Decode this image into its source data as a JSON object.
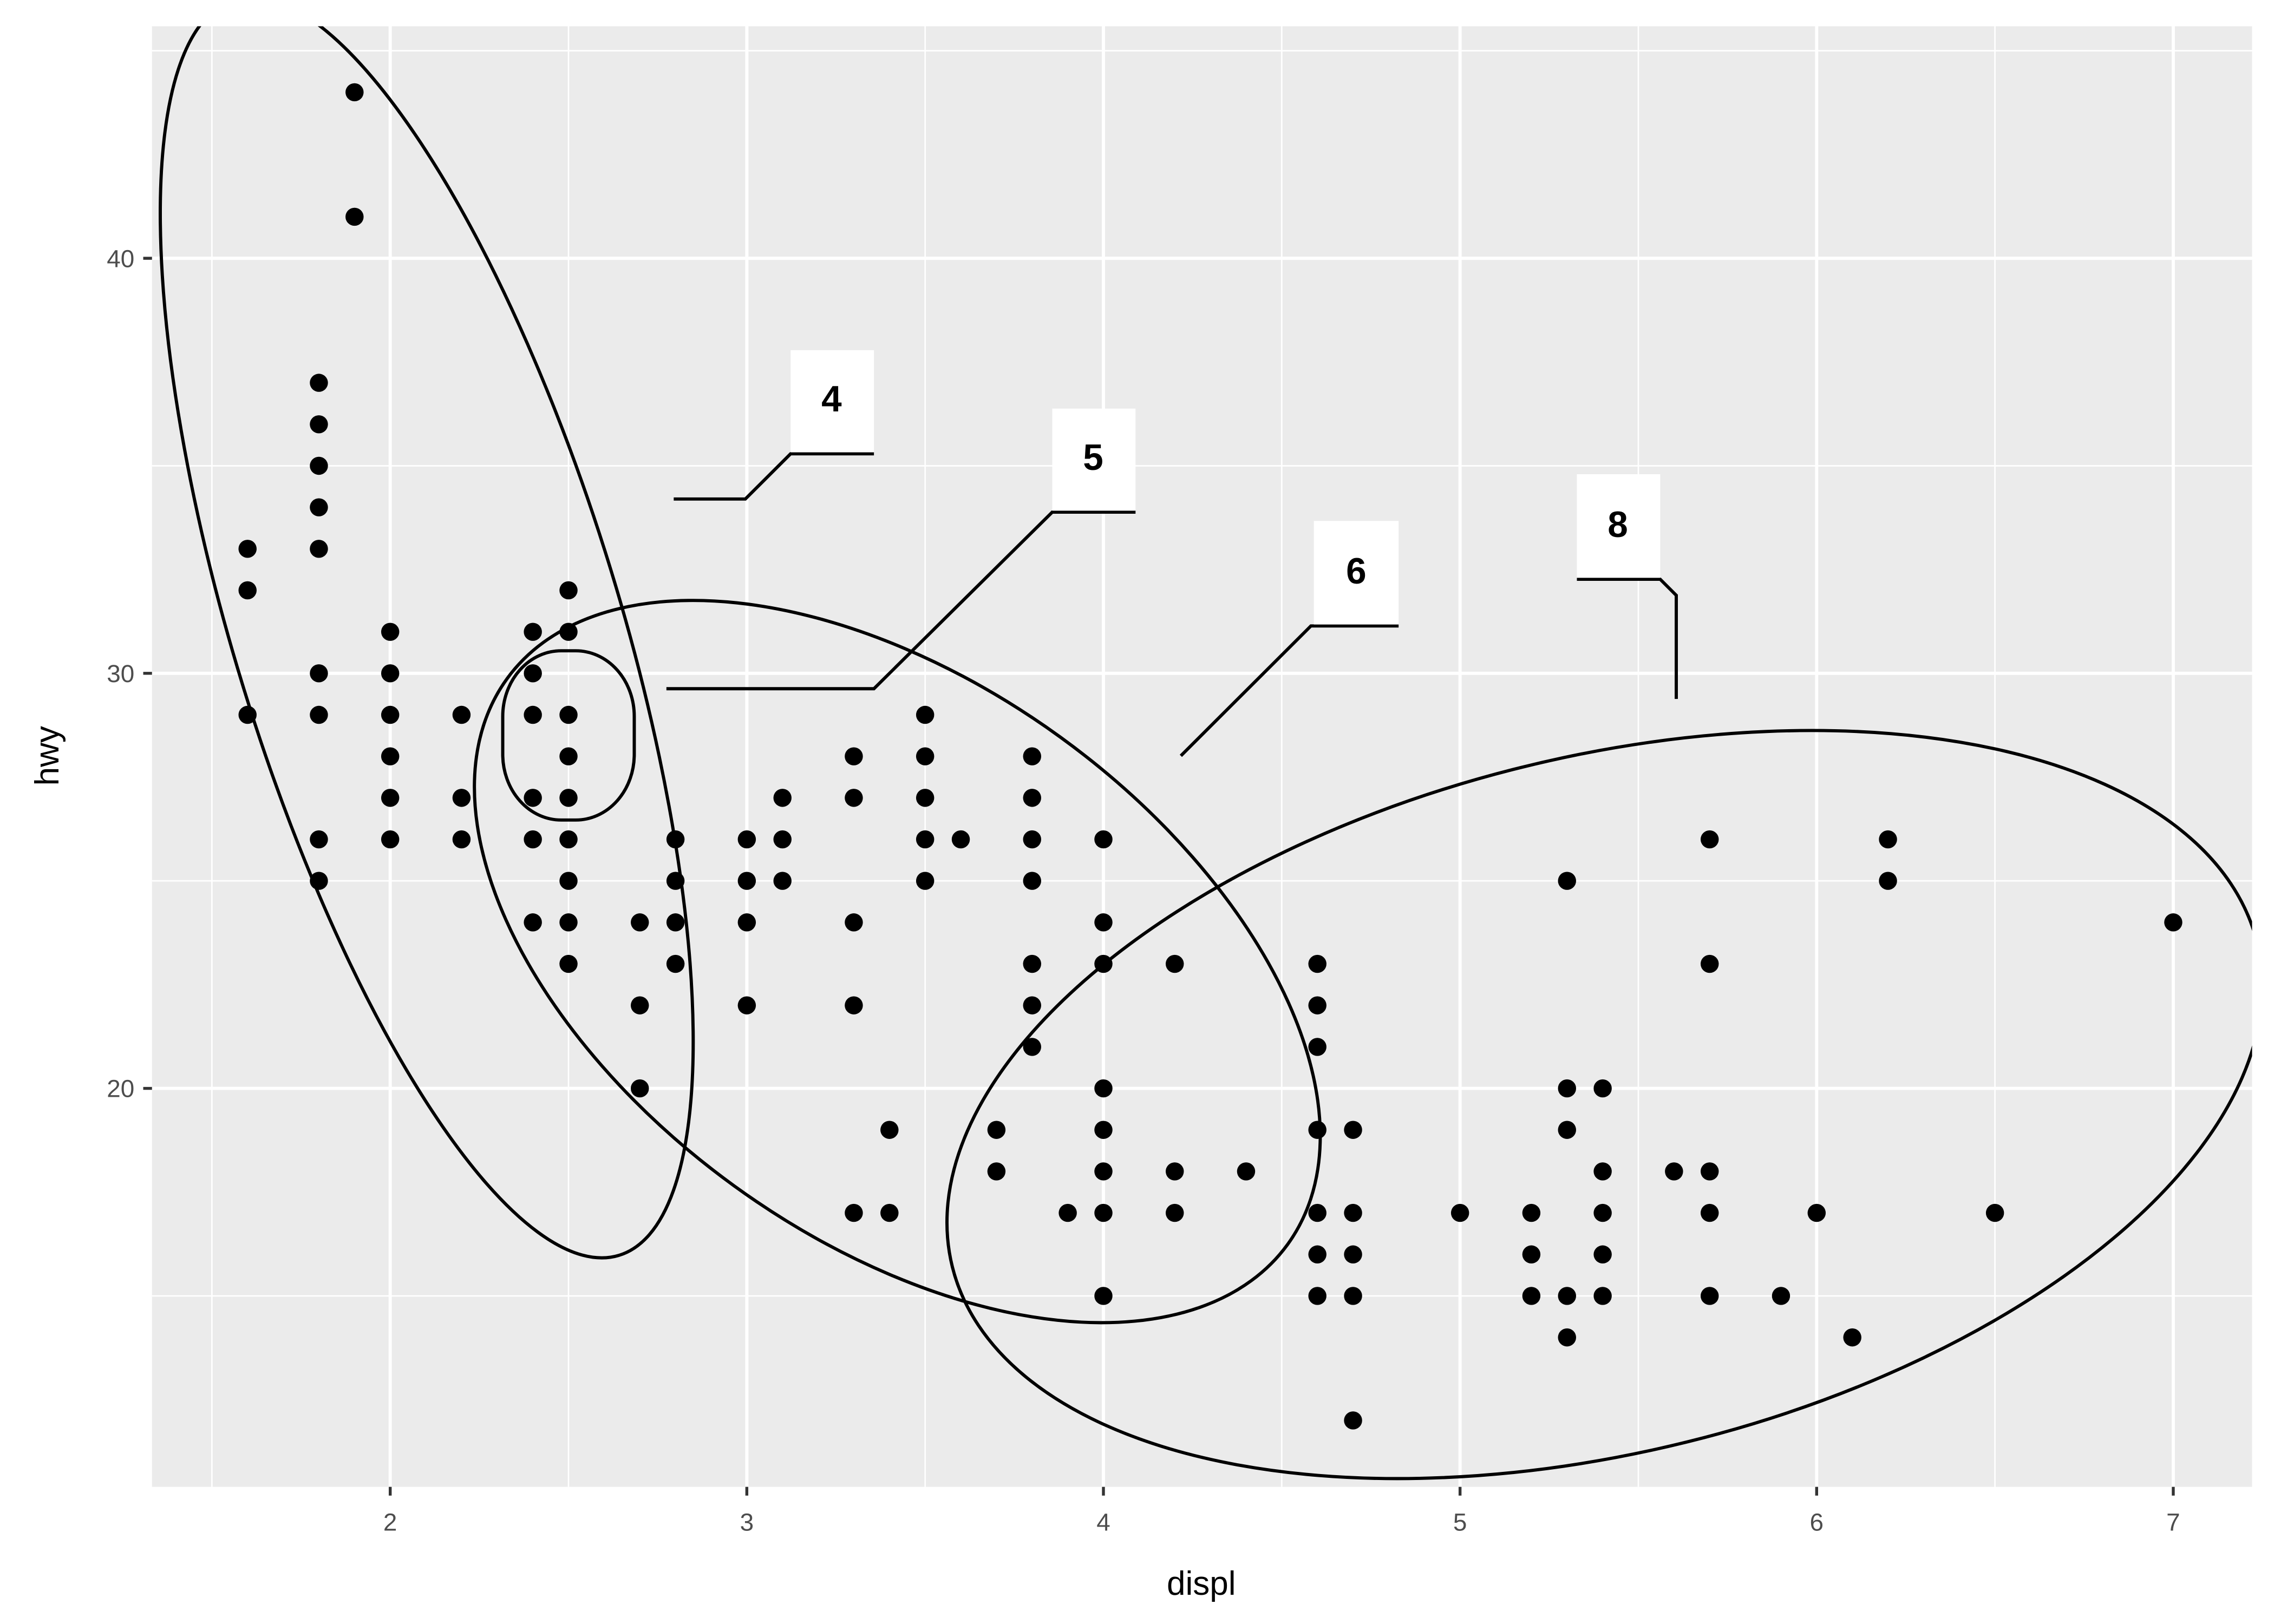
{
  "chart_data": {
    "type": "scatter",
    "x_label": "displ",
    "y_label": "hwy",
    "color": "#000000",
    "grid": true,
    "xlim": [
      1.332,
      7.221
    ],
    "ylim": [
      10.4,
      45.59
    ],
    "xticks": [
      2,
      3,
      4,
      5,
      6,
      7
    ],
    "yticks": [
      20,
      30,
      40
    ],
    "x": [
      1.6,
      1.6,
      1.6,
      1.8,
      1.8,
      1.8,
      1.8,
      1.8,
      1.8,
      1.8,
      1.8,
      1.8,
      1.9,
      1.9,
      2.0,
      2.0,
      2.0,
      2.0,
      2.0,
      2.0,
      2.2,
      2.2,
      2.2,
      2.4,
      2.4,
      2.4,
      2.4,
      2.4,
      2.4,
      2.5,
      2.5,
      2.5,
      2.5,
      2.5,
      2.5,
      2.5,
      2.5,
      2.5,
      2.7,
      2.7,
      2.7,
      2.8,
      2.8,
      2.8,
      2.8,
      3.0,
      3.0,
      3.0,
      3.0,
      3.1,
      3.1,
      3.1,
      3.3,
      3.3,
      3.3,
      3.3,
      3.3,
      3.4,
      3.4,
      3.5,
      3.5,
      3.5,
      3.5,
      3.5,
      3.6,
      3.7,
      3.7,
      3.8,
      3.8,
      3.8,
      3.8,
      3.8,
      3.8,
      3.8,
      3.9,
      4.0,
      4.0,
      4.0,
      4.0,
      4.0,
      4.0,
      4.0,
      4.0,
      4.2,
      4.2,
      4.2,
      4.4,
      4.6,
      4.6,
      4.6,
      4.6,
      4.6,
      4.6,
      4.6,
      4.7,
      4.7,
      4.7,
      4.7,
      4.7,
      5.0,
      5.2,
      5.2,
      5.2,
      5.3,
      5.3,
      5.3,
      5.3,
      5.3,
      5.4,
      5.4,
      5.4,
      5.4,
      5.4,
      5.6,
      5.7,
      5.7,
      5.7,
      5.7,
      5.7,
      5.9,
      6.0,
      6.1,
      6.2,
      6.2,
      6.5,
      7.0
    ],
    "values": [
      33,
      32,
      29,
      37,
      36,
      35,
      34,
      33,
      30,
      29,
      26,
      25,
      44,
      41,
      31,
      30,
      29,
      28,
      27,
      26,
      29,
      27,
      26,
      31,
      30,
      29,
      27,
      26,
      24,
      32,
      31,
      29,
      28,
      27,
      26,
      25,
      24,
      23,
      24,
      22,
      20,
      26,
      25,
      24,
      23,
      26,
      25,
      24,
      22,
      27,
      26,
      25,
      28,
      27,
      24,
      22,
      17,
      19,
      17,
      29,
      28,
      27,
      26,
      25,
      26,
      19,
      18,
      28,
      27,
      26,
      25,
      23,
      22,
      21,
      17,
      26,
      24,
      23,
      20,
      19,
      18,
      17,
      15,
      23,
      18,
      17,
      18,
      23,
      22,
      21,
      19,
      17,
      16,
      15,
      19,
      17,
      16,
      15,
      12,
      17,
      17,
      16,
      15,
      25,
      20,
      19,
      15,
      14,
      20,
      18,
      17,
      16,
      15,
      18,
      26,
      23,
      18,
      17,
      15,
      15,
      17,
      14,
      26,
      25,
      17,
      24
    ],
    "annotations": [
      {
        "label": "4"
      },
      {
        "label": "5"
      },
      {
        "label": "6"
      },
      {
        "label": "8"
      }
    ]
  }
}
